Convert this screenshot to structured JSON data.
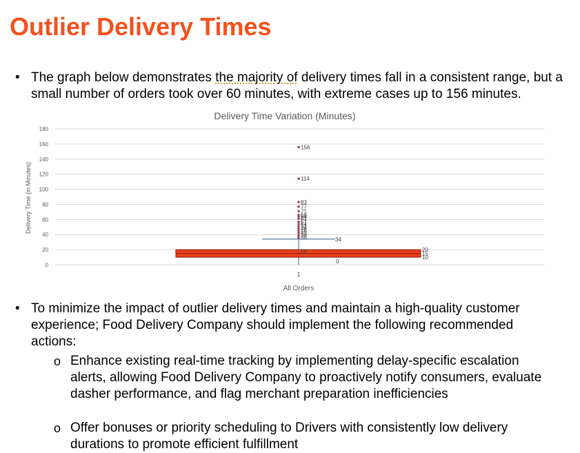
{
  "slide": {
    "title": "Outlier Delivery Times",
    "bullet1_pre": "The graph below demonstrates ",
    "bullet1_squiggle": "the majority of",
    "bullet1_post": " delivery times fall in a consistent range, but a small number of orders took over 60 minutes, with extreme cases up to 156 minutes.",
    "bullet2": "To minimize the impact of outlier delivery times and maintain a high-quality customer experience; Food Delivery Company should implement the following recommended actions:",
    "sub_items": [
      "Enhance existing real-time tracking by implementing delay-specific escalation alerts, allowing Food Delivery Company to proactively notify consumers, evaluate dasher performance, and flag merchant preparation inefficiencies",
      "Offer bonuses or priority scheduling to Drivers with consistently low delivery durations to promote efficient fulfillment"
    ],
    "bullet_glyph": "•",
    "sub_glyph": "o"
  },
  "colors": {
    "title": "#f4511e",
    "box_fill": "#e8401c",
    "box_stroke": "#8b1a0a",
    "outlier": "#9e4a5a",
    "whisker": "#2e5c8a",
    "grid": "#d9d9d9",
    "axis_text": "#595959"
  },
  "chart_data": {
    "type": "box",
    "title": "Delivery Time Variation (Minutes)",
    "ylabel": "Delivery Time  (in Minutes)",
    "xlabel": "All Orders",
    "categories": [
      "1"
    ],
    "ylim": [
      0,
      180
    ],
    "yticks": [
      0,
      20,
      40,
      60,
      80,
      100,
      120,
      140,
      160,
      180
    ],
    "grid": true,
    "box": {
      "q1": 10,
      "median": 15,
      "q3": 20,
      "mean": 18,
      "whisker_low": 0,
      "whisker_high": 34,
      "labels": {
        "q3": "20",
        "median": "15",
        "q1": "10",
        "mean": "18",
        "whisker_high": "34",
        "whisker_low": "0"
      }
    },
    "outliers": [
      156,
      114,
      83,
      77,
      71,
      66,
      64,
      61,
      57,
      54,
      51,
      48,
      45,
      42,
      39,
      36
    ],
    "outlier_labels": [
      "156",
      "114",
      "83",
      "77",
      "71",
      "66",
      "64",
      "61",
      "57",
      "54",
      "51",
      "48",
      "45",
      "42",
      "39",
      "36"
    ]
  }
}
